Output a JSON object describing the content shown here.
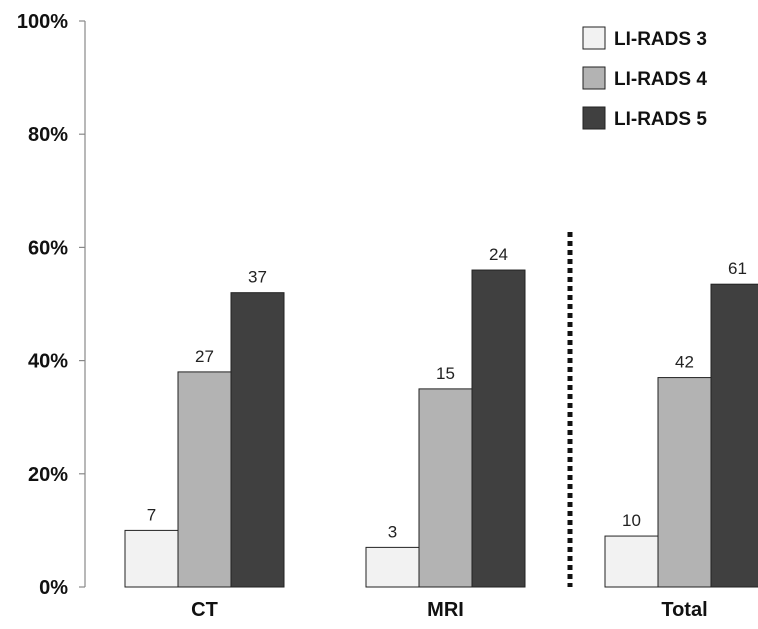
{
  "chart_data": {
    "type": "bar",
    "categories": [
      "CT",
      "MRI",
      "Total"
    ],
    "series": [
      {
        "name": "LI-RADS 3",
        "color": "#f2f2f2",
        "values": [
          10,
          7,
          9
        ],
        "labels": [
          "7",
          "3",
          "10"
        ]
      },
      {
        "name": "LI-RADS 4",
        "color": "#b3b3b3",
        "values": [
          38,
          35,
          37
        ],
        "labels": [
          "27",
          "15",
          "42"
        ]
      },
      {
        "name": "LI-RADS 5",
        "color": "#404040",
        "values": [
          52,
          56,
          53.5
        ],
        "labels": [
          "37",
          "24",
          "61"
        ]
      }
    ],
    "yticks": [
      "0%",
      "20%",
      "40%",
      "60%",
      "80%",
      "100%"
    ],
    "ylim": [
      0,
      100
    ],
    "grid": false,
    "legend_position": "top-right",
    "divider": "dotted vertical line between MRI and Total"
  }
}
